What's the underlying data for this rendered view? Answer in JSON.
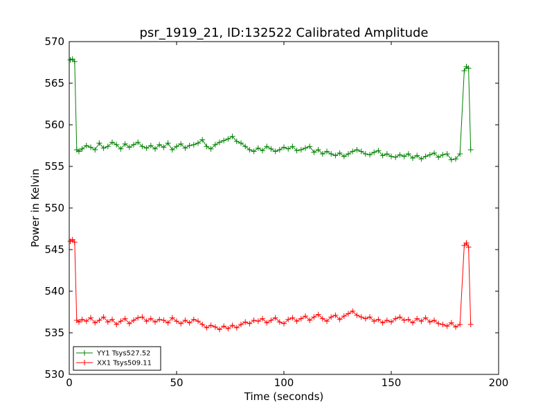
{
  "chart_data": {
    "type": "line",
    "title": "psr_1919_21, ID:132522 Calibrated Amplitude",
    "xlabel": "Time (seconds)",
    "ylabel": "Power in Kelvin",
    "xlim": [
      0,
      200
    ],
    "ylim": [
      530,
      570
    ],
    "xticks": [
      0,
      50,
      100,
      150,
      200
    ],
    "yticks": [
      530,
      535,
      540,
      545,
      550,
      555,
      560,
      565,
      570
    ],
    "grid": false,
    "legend_position": "lower-left",
    "marker": "plus",
    "series": [
      {
        "name": "YY1 Tsys527.52",
        "color": "#008000",
        "x": [
          0.5,
          1.5,
          2.5,
          3.5,
          4.5,
          6,
          8,
          10,
          12,
          14,
          16,
          18,
          20,
          22,
          24,
          26,
          28,
          30,
          32,
          34,
          36,
          38,
          40,
          42,
          44,
          46,
          48,
          50,
          52,
          54,
          56,
          58,
          60,
          62,
          64,
          66,
          68,
          70,
          72,
          74,
          76,
          78,
          80,
          82,
          84,
          86,
          88,
          90,
          92,
          94,
          96,
          98,
          100,
          102,
          104,
          106,
          108,
          110,
          112,
          114,
          116,
          118,
          120,
          122,
          124,
          126,
          128,
          130,
          132,
          134,
          136,
          138,
          140,
          142,
          144,
          146,
          148,
          150,
          152,
          154,
          156,
          158,
          160,
          162,
          164,
          166,
          168,
          170,
          172,
          174,
          176,
          178,
          180,
          182,
          184,
          185,
          186,
          187
        ],
        "y": [
          567.8,
          567.9,
          567.6,
          557,
          556.8,
          557.1,
          557.5,
          557.3,
          557,
          557.8,
          557.2,
          557.4,
          557.9,
          557.6,
          557.1,
          557.7,
          557.3,
          557.6,
          557.9,
          557.4,
          557.2,
          557.5,
          557.1,
          557.6,
          557.3,
          557.8,
          557,
          557.4,
          557.7,
          557.2,
          557.5,
          557.6,
          557.8,
          558.2,
          557.4,
          557.1,
          557.6,
          557.9,
          558.1,
          558.3,
          558.6,
          558,
          557.8,
          557.4,
          557,
          556.8,
          557.2,
          556.9,
          557.4,
          557.1,
          556.8,
          557,
          557.3,
          557.1,
          557.4,
          556.9,
          557,
          557.2,
          557.4,
          556.7,
          557,
          556.5,
          556.8,
          556.5,
          556.3,
          556.6,
          556.2,
          556.5,
          556.8,
          557,
          556.8,
          556.5,
          556.4,
          556.7,
          556.9,
          556.3,
          556.5,
          556.2,
          556.1,
          556.4,
          556.2,
          556.5,
          556,
          556.3,
          555.9,
          556.2,
          556.4,
          556.6,
          556.1,
          556.4,
          556.5,
          555.8,
          555.9,
          556.5,
          566.5,
          567,
          566.8,
          557
        ]
      },
      {
        "name": "XX1 Tsys509.11",
        "color": "#ff0000",
        "x": [
          0.5,
          1.5,
          2.5,
          3.5,
          4.5,
          6,
          8,
          10,
          12,
          14,
          16,
          18,
          20,
          22,
          24,
          26,
          28,
          30,
          32,
          34,
          36,
          38,
          40,
          42,
          44,
          46,
          48,
          50,
          52,
          54,
          56,
          58,
          60,
          62,
          64,
          66,
          68,
          70,
          72,
          74,
          76,
          78,
          80,
          82,
          84,
          86,
          88,
          90,
          92,
          94,
          96,
          98,
          100,
          102,
          104,
          106,
          108,
          110,
          112,
          114,
          116,
          118,
          120,
          122,
          124,
          126,
          128,
          130,
          132,
          134,
          136,
          138,
          140,
          142,
          144,
          146,
          148,
          150,
          152,
          154,
          156,
          158,
          160,
          162,
          164,
          166,
          168,
          170,
          172,
          174,
          176,
          178,
          180,
          182,
          184,
          185,
          186,
          187
        ],
        "y": [
          546,
          546.2,
          545.9,
          536.5,
          536.3,
          536.6,
          536.4,
          536.8,
          536.2,
          536.5,
          536.9,
          536.3,
          536.6,
          536,
          536.4,
          536.7,
          536.1,
          536.5,
          536.8,
          536.9,
          536.4,
          536.7,
          536.3,
          536.6,
          536.5,
          536.2,
          536.8,
          536.4,
          536.1,
          536.5,
          536.2,
          536.6,
          536.4,
          536,
          535.6,
          535.9,
          535.7,
          535.4,
          535.8,
          535.5,
          535.9,
          535.6,
          536,
          536.3,
          536.1,
          536.5,
          536.4,
          536.7,
          536.2,
          536.5,
          536.8,
          536.3,
          536.1,
          536.6,
          536.8,
          536.4,
          536.7,
          537,
          536.5,
          536.9,
          537.2,
          536.7,
          536.4,
          536.9,
          537.1,
          536.6,
          537,
          537.3,
          537.6,
          537.1,
          536.9,
          536.7,
          536.9,
          536.4,
          536.6,
          536.2,
          536.5,
          536.3,
          536.7,
          536.9,
          536.5,
          536.6,
          536.2,
          536.7,
          536.4,
          536.8,
          536.3,
          536.5,
          536.1,
          536,
          535.8,
          536.2,
          535.7,
          536,
          545.5,
          545.8,
          545.3,
          536
        ]
      }
    ]
  }
}
